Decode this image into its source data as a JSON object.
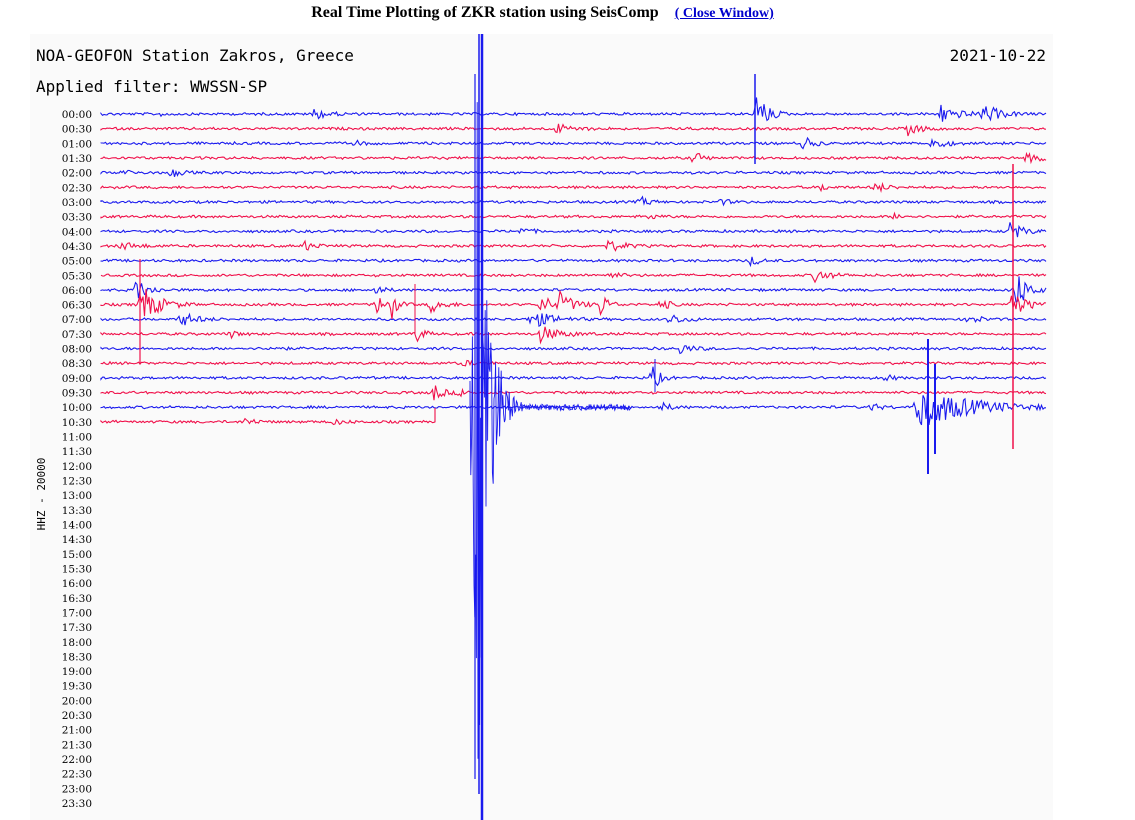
{
  "header": {
    "title": "Real Time Plotting of ZKR station using SeisComp",
    "close_label": "( Close Window)"
  },
  "plot": {
    "station_label": "NOA-GEOFON Station Zakros, Greece",
    "date": "2021-10-22",
    "filter_label": "Applied filter: WWSSN-SP",
    "channel_label": "HHZ - 20000",
    "time_labels": [
      "00:00",
      "00:30",
      "01:00",
      "01:30",
      "02:00",
      "02:30",
      "03:00",
      "03:30",
      "04:00",
      "04:30",
      "05:00",
      "05:30",
      "06:00",
      "06:30",
      "07:00",
      "07:30",
      "08:00",
      "08:30",
      "09:00",
      "09:30",
      "10:00",
      "10:30",
      "11:00",
      "11:30",
      "12:00",
      "12:30",
      "13:00",
      "13:30",
      "14:00",
      "14:30",
      "15:00",
      "15:30",
      "16:00",
      "16:30",
      "17:00",
      "17:30",
      "18:00",
      "18:30",
      "19:00",
      "19:30",
      "20:00",
      "20:30",
      "21:00",
      "21:30",
      "22:00",
      "22:30",
      "23:00",
      "23:30"
    ],
    "colors": {
      "even_trace": "#1a1aee",
      "odd_trace": "#f0104a",
      "background": "#fafafa",
      "text": "#000000"
    },
    "recorded_traces": 22
  }
}
